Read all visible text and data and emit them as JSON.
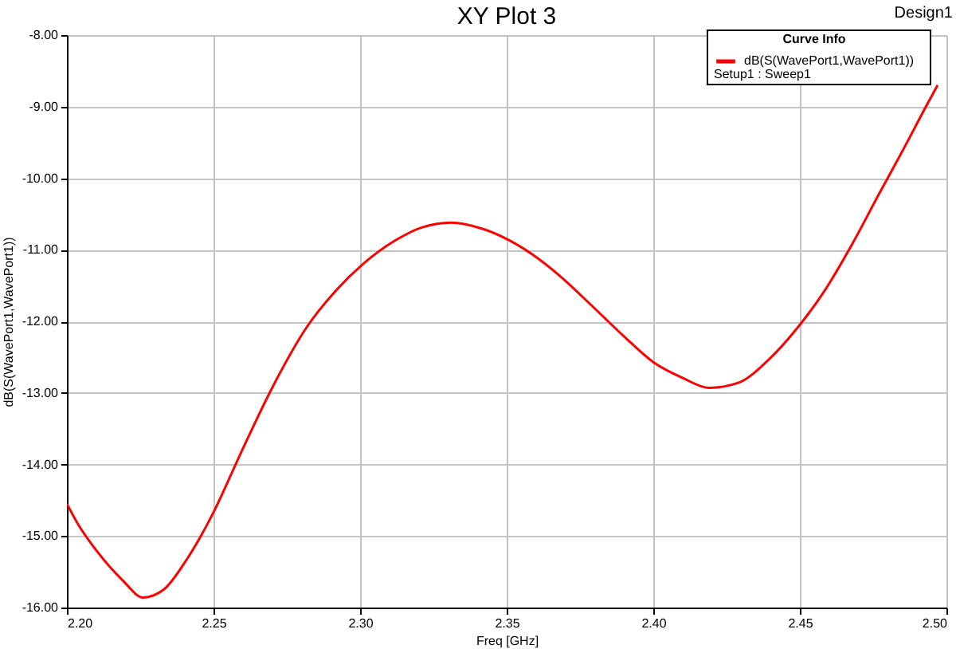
{
  "chart_data": {
    "type": "line",
    "title": "XY Plot 3",
    "xlabel": "Freq [GHz]",
    "ylabel": "dB(S(WavePort1,WavePort1))",
    "legend_title": "Curve Info",
    "annotations": [
      "Setup1 : Sweep1",
      "Design1"
    ],
    "x": [
      2.2,
      2.204,
      2.21,
      2.219,
      2.226,
      2.233,
      2.241,
      2.25,
      2.259,
      2.27,
      2.282,
      2.292,
      2.301,
      2.312,
      2.321,
      2.331,
      2.342,
      2.351,
      2.361,
      2.368,
      2.379,
      2.39,
      2.4,
      2.41,
      2.419,
      2.429,
      2.439,
      2.449,
      2.458,
      2.468,
      2.477,
      2.485,
      2.493,
      2.497
    ],
    "series": [
      {
        "name": "dB(S(WavePort1,WavePort1))",
        "color": "#ff0000",
        "values": [
          -14.55,
          -14.85,
          -15.2,
          -15.62,
          -15.86,
          -15.75,
          -15.32,
          -14.67,
          -13.87,
          -12.93,
          -12.07,
          -11.56,
          -11.2,
          -10.87,
          -10.69,
          -10.62,
          -10.71,
          -10.87,
          -11.13,
          -11.36,
          -11.78,
          -12.21,
          -12.57,
          -12.79,
          -12.93,
          -12.86,
          -12.55,
          -12.1,
          -11.6,
          -10.91,
          -10.22,
          -9.62,
          -9.0,
          -8.7
        ]
      }
    ],
    "xlim": [
      2.2,
      2.5
    ],
    "xticks": [
      {
        "value": 2.2,
        "label": "2.20"
      },
      2.25,
      {
        "value": 2.3,
        "label": "2.30"
      },
      2.35,
      {
        "value": 2.4,
        "label": "2.40"
      },
      2.45,
      {
        "value": 2.5,
        "label": "2.50"
      }
    ],
    "ylim": [
      -16,
      -8
    ],
    "yticks": [
      {
        "value": -16,
        "label": "-16.00"
      },
      {
        "value": -15,
        "label": "-15.00"
      },
      {
        "value": -14,
        "label": "-14.00"
      },
      {
        "value": -13,
        "label": "-13.00"
      },
      {
        "value": -12,
        "label": "-12.00"
      },
      {
        "value": -11,
        "label": "-11.00"
      },
      {
        "value": -10,
        "label": "-10.00"
      },
      {
        "value": -9,
        "label": "-9.00"
      },
      {
        "value": -8,
        "label": "-8.00"
      }
    ],
    "grid": true,
    "legend": "top right"
  }
}
